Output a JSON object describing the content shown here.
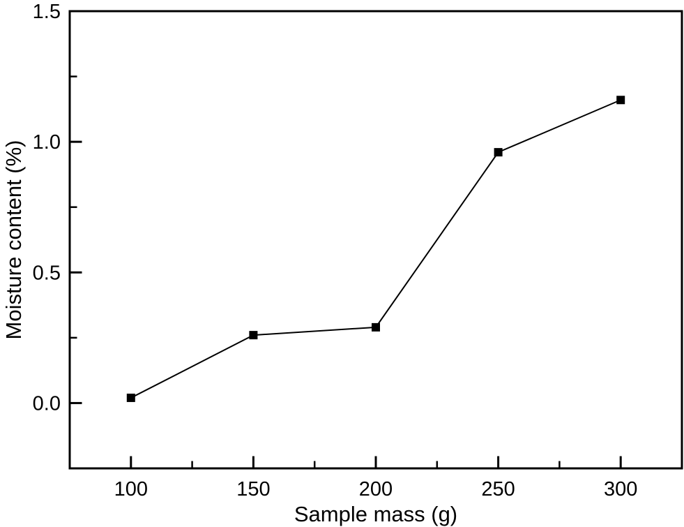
{
  "figure": {
    "background_color": "#ffffff",
    "axis_color": "#000000"
  },
  "chart_data": {
    "type": "line",
    "title": "",
    "xlabel": "Sample mass (g)",
    "ylabel": "Moisture content (%)",
    "series": [
      {
        "name": "moisture-content",
        "x": [
          100,
          150,
          200,
          250,
          300
        ],
        "y": [
          0.02,
          0.26,
          0.29,
          0.96,
          1.16
        ],
        "color": "#000000",
        "marker": "filled-square",
        "marker_size": 12,
        "line_width": 2,
        "line_style": "solid"
      }
    ],
    "xlim": [
      75,
      325
    ],
    "ylim": [
      -0.25,
      1.5
    ],
    "x_ticks": {
      "values": [
        100,
        150,
        200,
        250,
        300
      ],
      "labels": [
        "100",
        "150",
        "200",
        "250",
        "300"
      ],
      "minor": [
        125,
        175,
        225,
        275
      ]
    },
    "y_ticks": {
      "values": [
        0,
        0.5,
        1,
        1.5
      ],
      "labels": [
        "0.0",
        "0.5",
        "1.0",
        "1.5"
      ],
      "minor": [
        0.25,
        0.75,
        1.25
      ]
    },
    "grid": false,
    "legend": false,
    "frame": "full-box",
    "tick_direction": "in"
  }
}
